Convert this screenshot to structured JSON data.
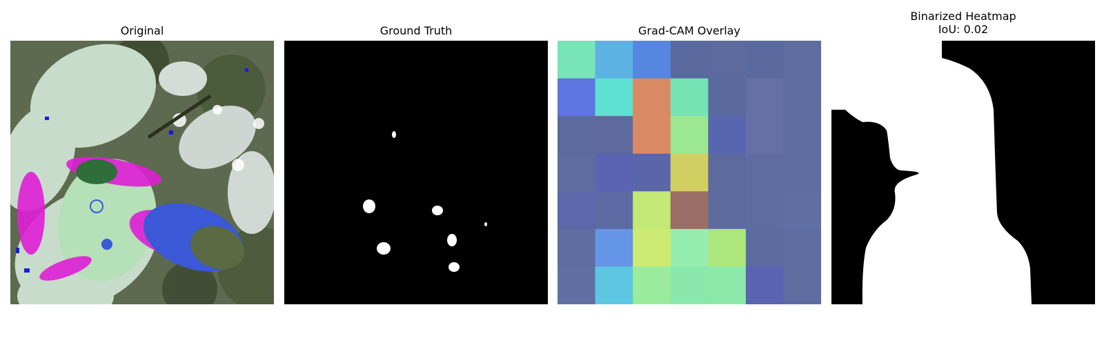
{
  "panels": [
    {
      "title": "Original",
      "kind": "image"
    },
    {
      "title": "Ground Truth",
      "kind": "mask"
    },
    {
      "title": "Grad-CAM Overlay",
      "kind": "heatmap"
    },
    {
      "title": "Binarized Heatmap",
      "subtitle": "IoU: 0.02",
      "kind": "binary-mask"
    }
  ],
  "gradcam": {
    "grid": [
      [
        "#7ae4b9",
        "#5db2e4",
        "#5587e0",
        "#5a6a9e",
        "#5c6a9e",
        "#5a6a9e",
        "#5e6ca0"
      ],
      [
        "#5e74e0",
        "#5ee0d2",
        "#d98a64",
        "#76e3b5",
        "#5a6a9e",
        "#6570a6",
        "#5e6ca0"
      ],
      [
        "#5c6a9e",
        "#5e6a9e",
        "#d98a64",
        "#9be792",
        "#5866b2",
        "#6470a6",
        "#5e6ca0"
      ],
      [
        "#5e6ca0",
        "#5a64b2",
        "#5a66aa",
        "#d2cf62",
        "#5c6a9e",
        "#5e6ca0",
        "#5e6ca0"
      ],
      [
        "#5c68aa",
        "#5c6aa4",
        "#c2e876",
        "#9a6e66",
        "#5c6a9e",
        "#5e6ca0",
        "#6070a4"
      ],
      [
        "#5e6ca0",
        "#6595e6",
        "#cdeb72",
        "#96edb0",
        "#ade77c",
        "#5c6ca0",
        "#5e6ca0"
      ],
      [
        "#6070a2",
        "#5ec6e0",
        "#9aec9c",
        "#8ae8ac",
        "#8ce9aa",
        "#5a64b2",
        "#5e6ca0"
      ]
    ]
  }
}
